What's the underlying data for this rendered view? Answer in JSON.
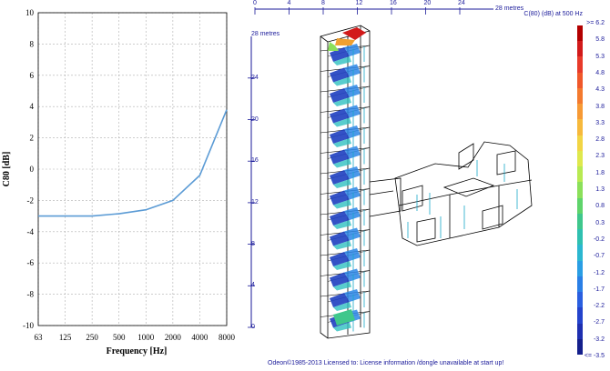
{
  "chart_data": {
    "type": "line",
    "categories": [
      "63",
      "125",
      "250",
      "500",
      "1000",
      "2000",
      "4000",
      "8000"
    ],
    "values": [
      -3.0,
      -3.0,
      -3.0,
      -2.85,
      -2.6,
      -2.0,
      -0.4,
      3.8
    ],
    "xlabel": "Frequency  [Hz]",
    "ylabel": "C80 [dB]",
    "ylim": [
      -10,
      10
    ],
    "yticks": [
      "10",
      "8",
      "6",
      "4",
      "2",
      "0",
      "-2",
      "-4",
      "-6",
      "-8",
      "-10"
    ],
    "grid": true,
    "line_color": "#5b9bd5"
  },
  "view3d": {
    "top_scale": [
      "0",
      "4",
      "8",
      "12",
      "16",
      "20",
      "24"
    ],
    "top_scale_unit": "28 metres",
    "left_scale": [
      "0",
      "4",
      "8",
      "12",
      "16",
      "20",
      "24"
    ],
    "left_scale_unit": "28 metres"
  },
  "colorbar": {
    "title": "C(80) (dB)  at 500 Hz",
    "labels": [
      ">= 6.2",
      "5.8",
      "5.3",
      "4.8",
      "4.3",
      "3.8",
      "3.3",
      "2.8",
      "2.3",
      "1.8",
      "1.3",
      "0.8",
      "0.3",
      "-0.2",
      "-0.7",
      "-1.2",
      "-1.7",
      "-2.2",
      "-2.7",
      "-3.2",
      "<= -3.5"
    ],
    "colors": [
      "#b30000",
      "#d21a1a",
      "#e83a2a",
      "#f0582a",
      "#f47a2e",
      "#f79a35",
      "#f7b93c",
      "#f2d544",
      "#dfe84d",
      "#b8ea52",
      "#8be05a",
      "#5fd46b",
      "#3fc78c",
      "#2fc0b0",
      "#2bb7d0",
      "#2a9ee4",
      "#2a7fe6",
      "#2a5fe0",
      "#2443cc",
      "#1e2fb0",
      "#141f8c"
    ]
  },
  "footer": "Odeon©1985-2013  Licensed to: License information /dongle unavailable at start up!"
}
